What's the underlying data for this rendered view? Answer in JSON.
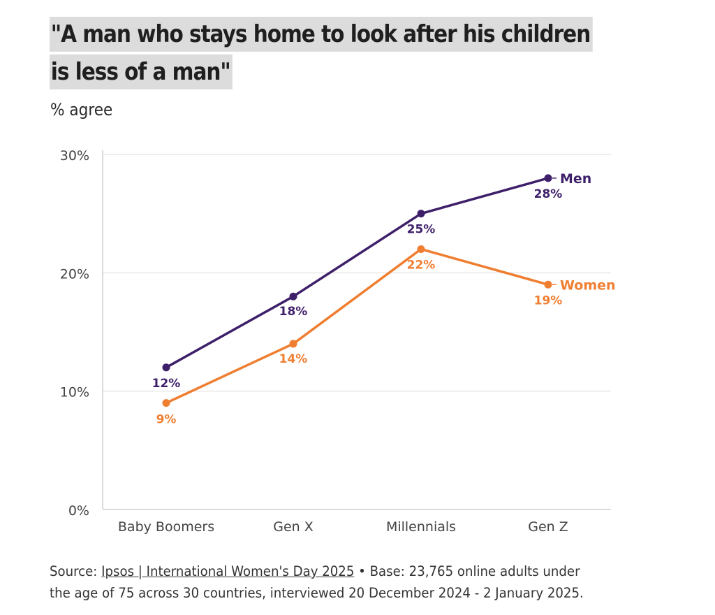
{
  "title_line1": "\"A man who stays home to look after his children",
  "title_line2": "is less of a man\"",
  "subtitle": "% agree",
  "footer": {
    "source_label": "Source:",
    "source_link": "Ipsos | International Women's Day 2025",
    "separator": "•",
    "base_line1": "Base: 23,765 online adults under",
    "base_line2": "the age of 75 across 30 countries, interviewed 20 December 2024 - 2 January 2025."
  },
  "colors": {
    "men": "#3e1f6a",
    "women": "#ef7e31",
    "axis": "#cfcfcf",
    "grid": "#e9e9e9",
    "tick": "#444444"
  },
  "chart_data": {
    "type": "line",
    "categories": [
      "Baby Boomers",
      "Gen X",
      "Millennials",
      "Gen Z"
    ],
    "ylim": [
      0,
      30
    ],
    "yticks": [
      0,
      10,
      20,
      30
    ],
    "ytick_labels": [
      "0%",
      "10%",
      "20%",
      "30%"
    ],
    "grid": true,
    "series": [
      {
        "name": "Men",
        "values": [
          12,
          18,
          25,
          28
        ],
        "labels": [
          "12%",
          "18%",
          "25%",
          "28%"
        ],
        "color": "#3e1f6a"
      },
      {
        "name": "Women",
        "values": [
          9,
          14,
          22,
          19
        ],
        "labels": [
          "9%",
          "14%",
          "22%",
          "19%"
        ],
        "color": "#ef7e31"
      }
    ]
  }
}
